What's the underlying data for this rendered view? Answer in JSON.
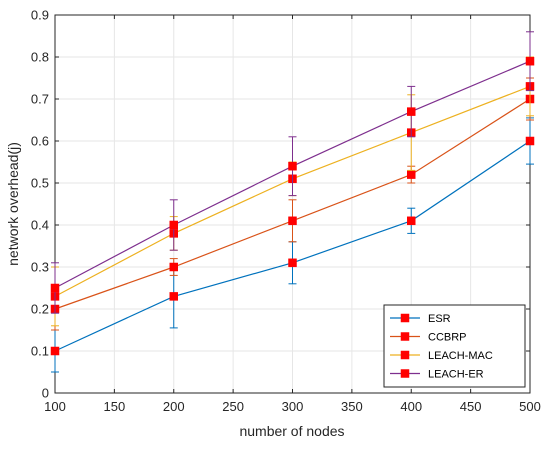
{
  "chart_data": {
    "type": "line",
    "title": "",
    "xlabel": "number of nodes",
    "ylabel": "network overhead(j)",
    "xlim": [
      100,
      500
    ],
    "ylim": [
      0,
      0.9
    ],
    "x_ticks": [
      100,
      150,
      200,
      250,
      300,
      350,
      400,
      450,
      500
    ],
    "y_ticks": [
      0,
      0.1,
      0.2,
      0.3,
      0.4,
      0.5,
      0.6,
      0.7,
      0.8,
      0.9
    ],
    "grid": true,
    "legend_position": "bottom-right",
    "marker": "square",
    "marker_color": "#FF0000",
    "x": [
      100,
      200,
      300,
      400,
      500
    ],
    "series": [
      {
        "name": "ESR",
        "color": "#0072BD",
        "values": [
          0.1,
          0.23,
          0.31,
          0.41,
          0.6
        ],
        "error": [
          0.05,
          0.075,
          0.05,
          0.03,
          0.055
        ]
      },
      {
        "name": "CCBRP",
        "color": "#D95319",
        "values": [
          0.2,
          0.3,
          0.41,
          0.52,
          0.7
        ],
        "error": [
          0.05,
          0.02,
          0.05,
          0.02,
          0.05
        ]
      },
      {
        "name": "LEACH-MAC",
        "color": "#EDB120",
        "values": [
          0.23,
          0.38,
          0.51,
          0.62,
          0.73
        ],
        "error": [
          0.07,
          0.04,
          0.04,
          0.09,
          0.07
        ]
      },
      {
        "name": "LEACH-ER",
        "color": "#7E2F8E",
        "values": [
          0.25,
          0.4,
          0.54,
          0.67,
          0.79
        ],
        "error": [
          0.06,
          0.06,
          0.07,
          0.06,
          0.07
        ]
      }
    ]
  }
}
